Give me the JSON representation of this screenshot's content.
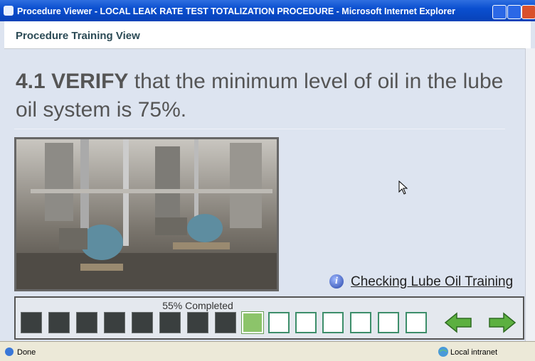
{
  "window_title": "Procedure Viewer - LOCAL LEAK RATE TEST TOTALIZATION PROCEDURE - Microsoft Internet Explorer",
  "header": {
    "title": "Procedure Training View"
  },
  "step": {
    "number": "4.1",
    "action": "VERIFY",
    "text": "that the minimum level of oil in the lube oil system is 75%."
  },
  "training_link": "Checking Lube Oil Training",
  "progress": {
    "label": "55% Completed"
  },
  "status_bar": {
    "status": "Done",
    "zone": "Local intranet"
  }
}
